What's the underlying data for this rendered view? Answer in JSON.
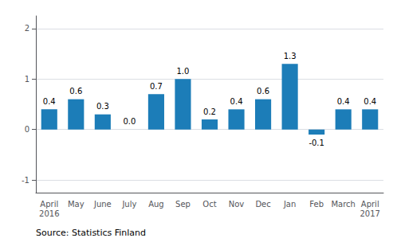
{
  "chart_data": {
    "type": "bar",
    "categories": [
      "April\n2016",
      "May",
      "June",
      "July",
      "Aug",
      "Sep",
      "Oct",
      "Nov",
      "Dec",
      "Jan",
      "Feb",
      "March",
      "April\n2017"
    ],
    "values": [
      0.4,
      0.6,
      0.3,
      0.0,
      0.7,
      1.0,
      0.2,
      0.4,
      0.6,
      1.3,
      -0.1,
      0.4,
      0.4
    ],
    "value_labels": [
      "0.4",
      "0.6",
      "0.3",
      "0.0",
      "0.7",
      "1.0",
      "0.2",
      "0.4",
      "0.6",
      "1.3",
      "-0.1",
      "0.4",
      "0.4"
    ],
    "data_labels": true,
    "color": "#1c7db8",
    "ylim": [
      -1.25,
      2.25
    ],
    "yticks": [
      -1,
      0,
      1,
      2
    ],
    "grid": true,
    "annotations": [
      "Source: Statistics Finland"
    ]
  }
}
